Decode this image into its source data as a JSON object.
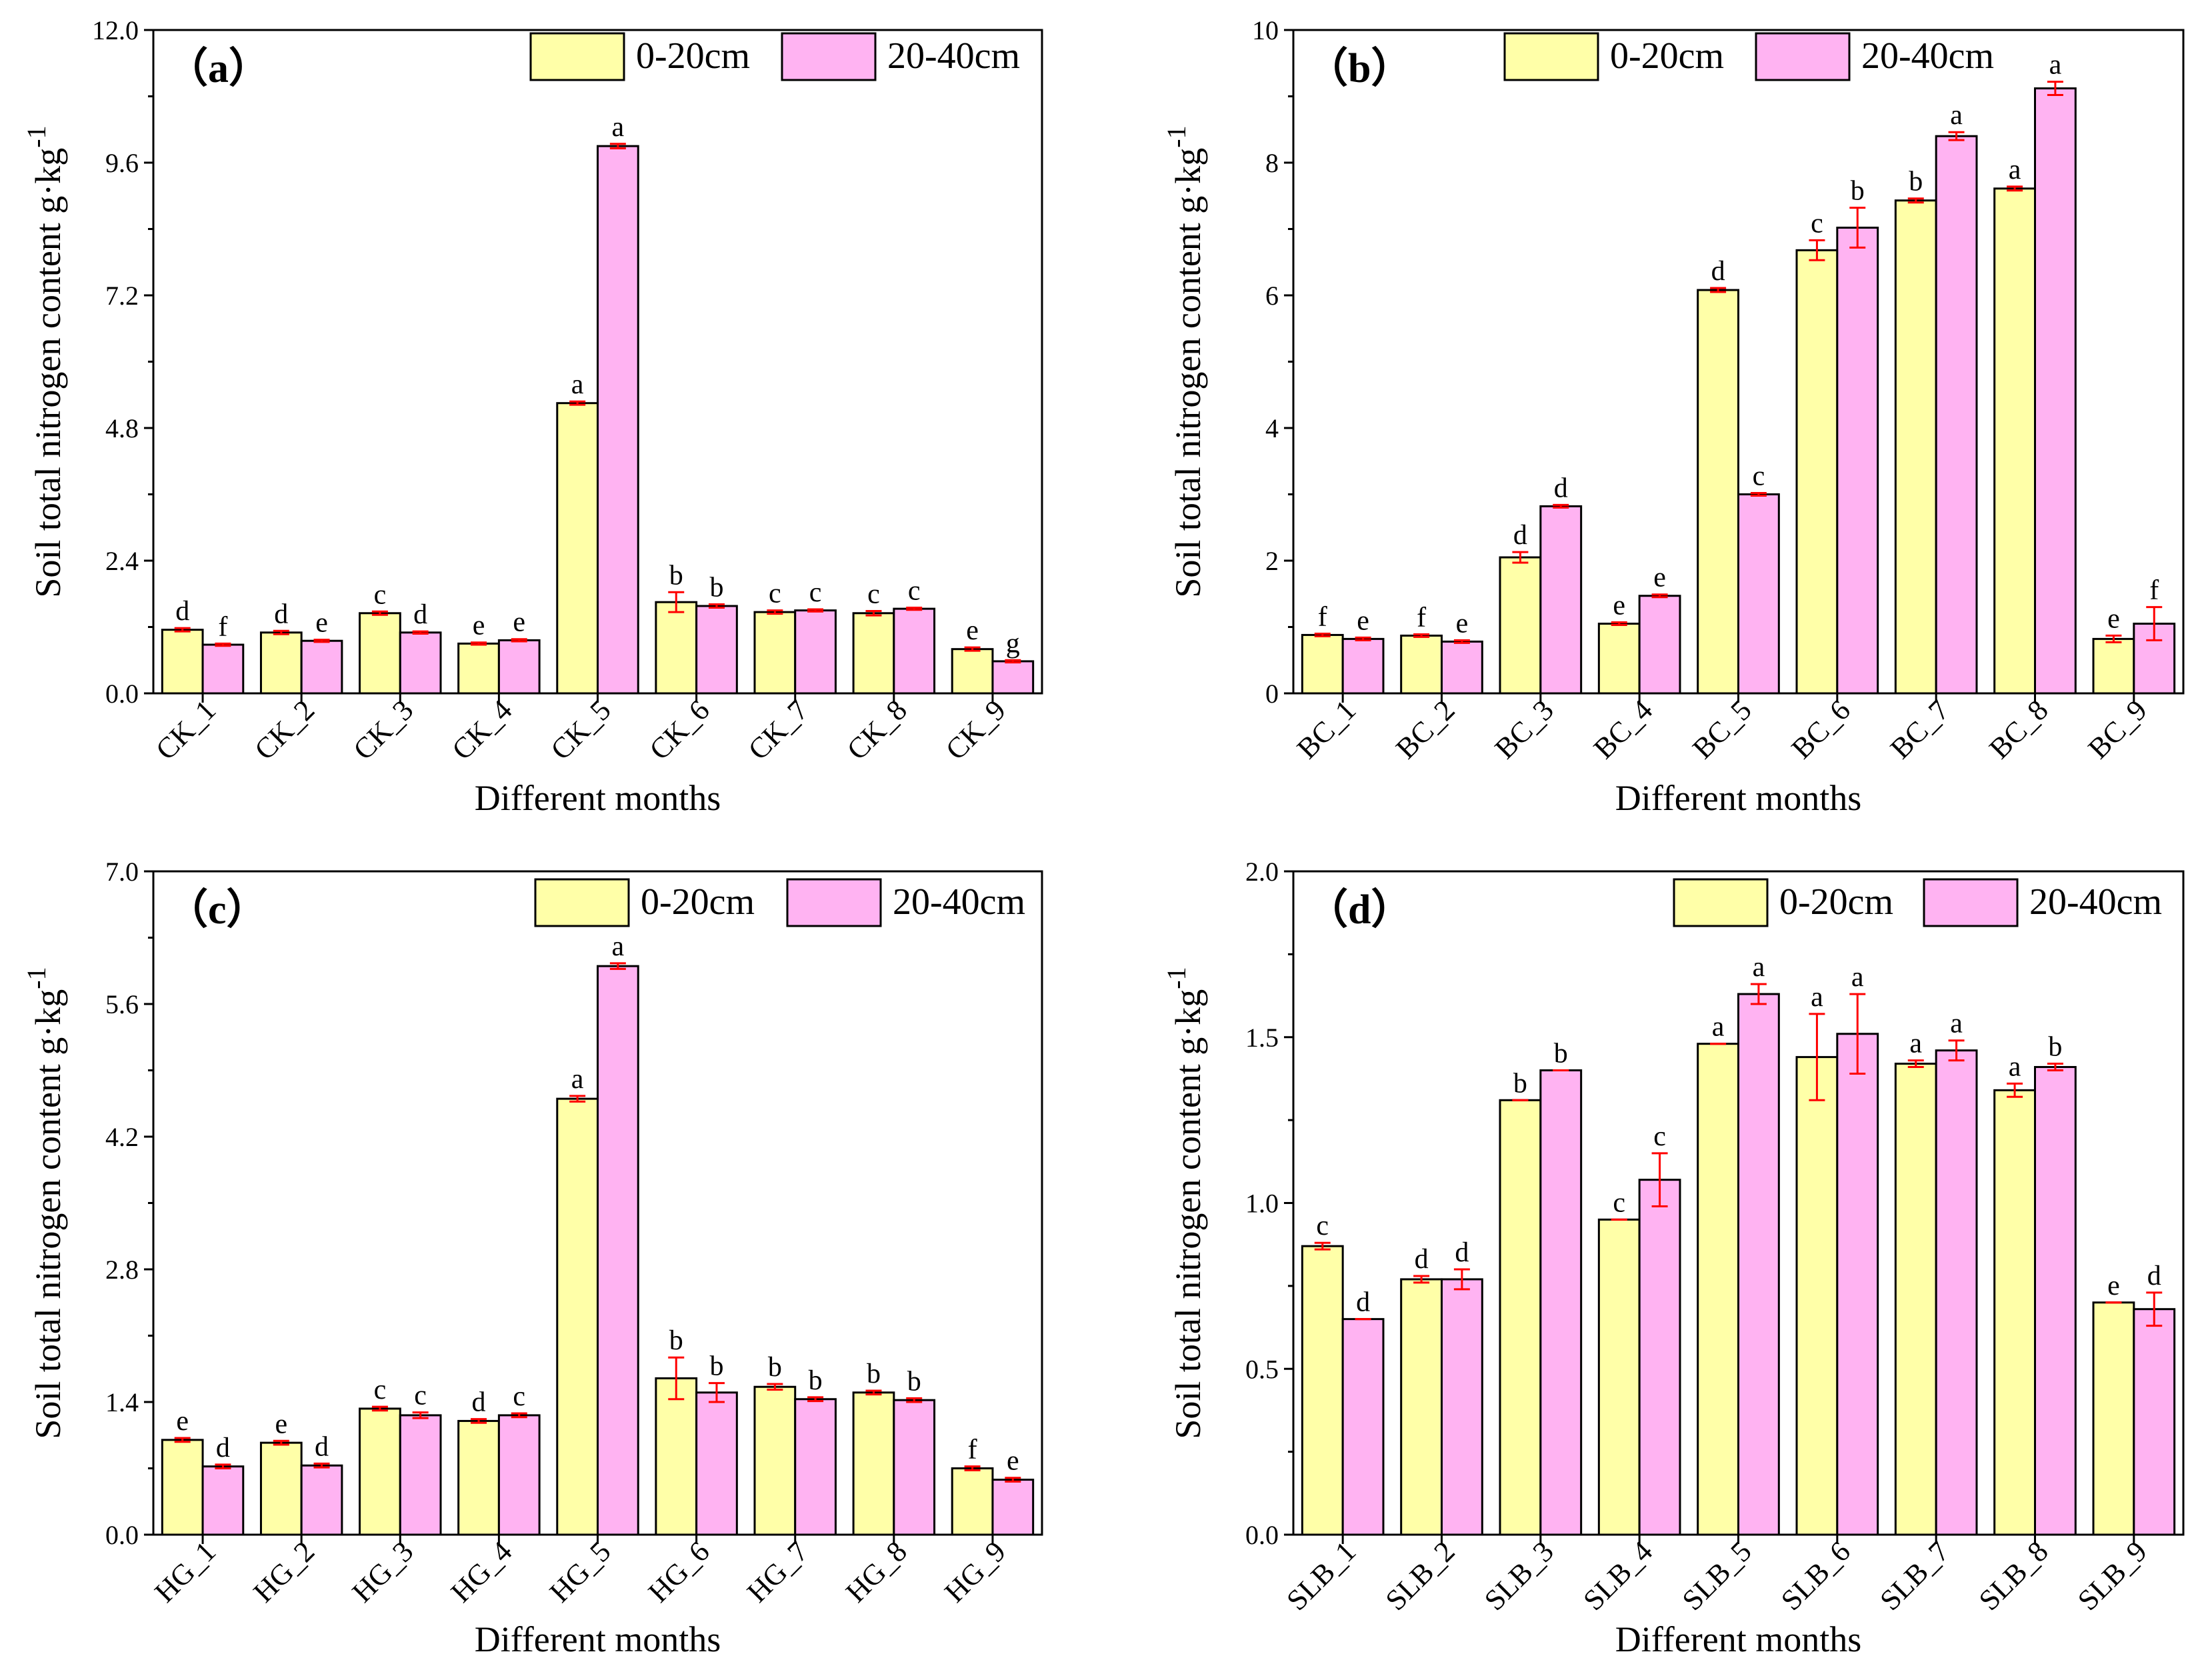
{
  "colors": {
    "series_0_20": "#FFFFA8",
    "series_20_40": "#FFB3F2",
    "error_bar": "#FF0000",
    "axis": "#000000"
  },
  "chart_data": [
    {
      "type": "bar",
      "panel_label": "（a）",
      "categories": [
        "CK_1",
        "CK_2",
        "CK_3",
        "CK_4",
        "CK_5",
        "CK_6",
        "CK_7",
        "CK_8",
        "CK_9"
      ],
      "xlabel": "Different months",
      "ylabel": "Soil total nitrogen content g·kg",
      "ylabel_superscript": "-1",
      "ylim": [
        0,
        12
      ],
      "yticks": [
        "0.0",
        "2.4",
        "4.8",
        "7.2",
        "9.6",
        "12.0"
      ],
      "legend_position": "top-right",
      "series": [
        {
          "name": "0-20cm",
          "values": [
            1.15,
            1.1,
            1.45,
            0.9,
            5.25,
            1.65,
            1.47,
            1.45,
            0.8
          ],
          "errors": [
            0.03,
            0.03,
            0.03,
            0.02,
            0.03,
            0.18,
            0.03,
            0.04,
            0.03
          ],
          "letters": [
            "d",
            "d",
            "c",
            "e",
            "a",
            "b",
            "c",
            "c",
            "e"
          ]
        },
        {
          "name": "20-40cm",
          "values": [
            0.88,
            0.95,
            1.1,
            0.96,
            9.9,
            1.58,
            1.5,
            1.53,
            0.58
          ],
          "errors": [
            0.02,
            0.02,
            0.02,
            0.02,
            0.04,
            0.03,
            0.02,
            0.02,
            0.02
          ],
          "letters": [
            "f",
            "e",
            "d",
            "e",
            "a",
            "b",
            "c",
            "c",
            "g"
          ]
        }
      ]
    },
    {
      "type": "bar",
      "panel_label": "（b）",
      "categories": [
        "BC_1",
        "BC_2",
        "BC_3",
        "BC_4",
        "BC_5",
        "BC_6",
        "BC_7",
        "BC_8",
        "BC_9"
      ],
      "xlabel": "Different months",
      "ylabel": "Soil total nitrogen content g·kg",
      "ylabel_superscript": "-1",
      "ylim": [
        0,
        10
      ],
      "yticks": [
        "0",
        "2",
        "4",
        "6",
        "8",
        "10"
      ],
      "legend_position": "top-right",
      "series": [
        {
          "name": "0-20cm",
          "values": [
            0.88,
            0.87,
            2.05,
            1.05,
            6.08,
            6.68,
            7.43,
            7.61,
            0.82
          ],
          "errors": [
            0.02,
            0.02,
            0.08,
            0.02,
            0.03,
            0.15,
            0.03,
            0.03,
            0.05
          ],
          "letters": [
            "f",
            "f",
            "d",
            "e",
            "d",
            "c",
            "b",
            "a",
            "e"
          ]
        },
        {
          "name": "20-40cm",
          "values": [
            0.82,
            0.78,
            2.82,
            1.47,
            3.0,
            7.02,
            8.4,
            9.12,
            1.05
          ],
          "errors": [
            0.02,
            0.02,
            0.02,
            0.02,
            0.02,
            0.3,
            0.06,
            0.1,
            0.25
          ],
          "letters": [
            "e",
            "e",
            "d",
            "e",
            "c",
            "b",
            "a",
            "a",
            "f"
          ]
        }
      ]
    },
    {
      "type": "bar",
      "panel_label": "（c）",
      "categories": [
        "HG_1",
        "HG_2",
        "HG_3",
        "HG_4",
        "HG_5",
        "HG_6",
        "HG_7",
        "HG_8",
        "HG_9"
      ],
      "xlabel": "Different months",
      "ylabel": "Soil total nitrogen content g·kg",
      "ylabel_superscript": "-1",
      "ylim": [
        0,
        7
      ],
      "yticks": [
        "0.0",
        "1.4",
        "2.8",
        "4.2",
        "5.6",
        "7.0"
      ],
      "legend_position": "top-right",
      "series": [
        {
          "name": "0-20cm",
          "values": [
            1.0,
            0.97,
            1.33,
            1.2,
            4.6,
            1.65,
            1.56,
            1.5,
            0.7
          ],
          "errors": [
            0.02,
            0.02,
            0.02,
            0.02,
            0.03,
            0.22,
            0.03,
            0.02,
            0.02
          ],
          "letters": [
            "e",
            "e",
            "c",
            "d",
            "a",
            "b",
            "b",
            "b",
            "f"
          ]
        },
        {
          "name": "20-40cm",
          "values": [
            0.72,
            0.73,
            1.26,
            1.26,
            6.0,
            1.5,
            1.43,
            1.42,
            0.58
          ],
          "errors": [
            0.02,
            0.02,
            0.03,
            0.02,
            0.03,
            0.1,
            0.02,
            0.02,
            0.02
          ],
          "letters": [
            "d",
            "d",
            "c",
            "c",
            "a",
            "b",
            "b",
            "b",
            "e"
          ]
        }
      ]
    },
    {
      "type": "bar",
      "panel_label": "（d）",
      "categories": [
        "SLB_1",
        "SLB_2",
        "SLB_3",
        "SLB_4",
        "SLB_5",
        "SLB_6",
        "SLB_7",
        "SLB_8",
        "SLB_9"
      ],
      "xlabel": "Different months",
      "ylabel": "Soil total nitrogen content g·kg",
      "ylabel_superscript": "-1",
      "ylim": [
        0,
        2
      ],
      "yticks": [
        "0.0",
        "0.5",
        "1.0",
        "1.5",
        "2.0"
      ],
      "legend_position": "top-right",
      "series": [
        {
          "name": "0-20cm",
          "values": [
            0.87,
            0.77,
            1.31,
            0.95,
            1.48,
            1.44,
            1.42,
            1.34,
            0.7
          ],
          "errors": [
            0.01,
            0.01,
            0.0,
            0.0,
            0.0,
            0.13,
            0.01,
            0.02,
            0.0
          ],
          "letters": [
            "c",
            "d",
            "b",
            "c",
            "a",
            "a",
            "a",
            "a",
            "e"
          ]
        },
        {
          "name": "20-40cm",
          "values": [
            0.65,
            0.77,
            1.4,
            1.07,
            1.63,
            1.51,
            1.46,
            1.41,
            0.68
          ],
          "errors": [
            0.0,
            0.03,
            0.0,
            0.08,
            0.03,
            0.12,
            0.03,
            0.01,
            0.05
          ],
          "letters": [
            "d",
            "d",
            "b",
            "c",
            "a",
            "a",
            "a",
            "b",
            "d"
          ]
        }
      ]
    }
  ]
}
